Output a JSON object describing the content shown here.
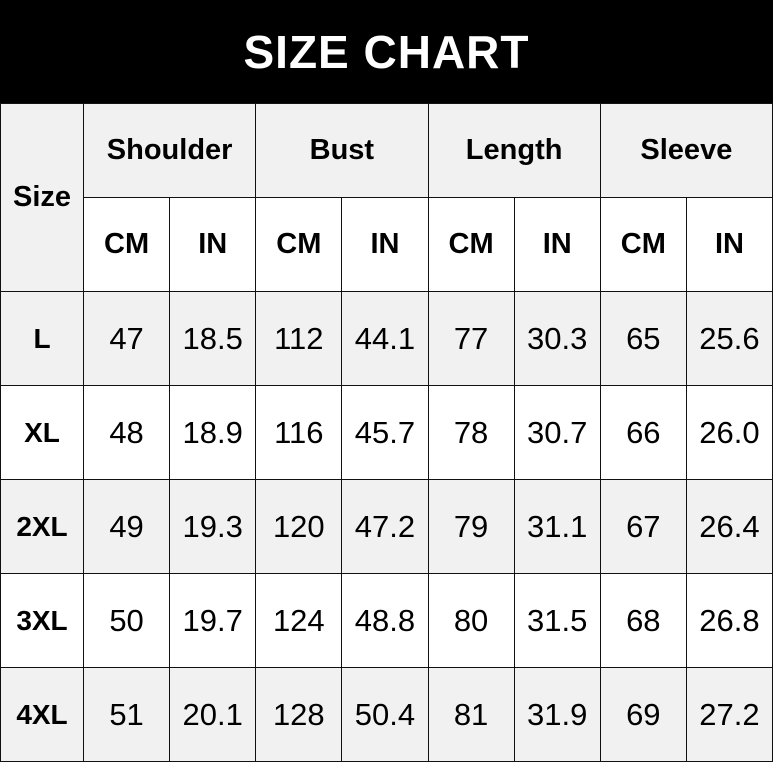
{
  "title": "SIZE CHART",
  "header": {
    "size": "Size",
    "groups": [
      "Shoulder",
      "Bust",
      "Length",
      "Sleeve"
    ],
    "units": [
      "CM",
      "IN",
      "CM",
      "IN",
      "CM",
      "IN",
      "CM",
      "IN"
    ]
  },
  "rows": [
    {
      "size": "L",
      "values": [
        "47",
        "18.5",
        "112",
        "44.1",
        "77",
        "30.3",
        "65",
        "25.6"
      ]
    },
    {
      "size": "XL",
      "values": [
        "48",
        "18.9",
        "116",
        "45.7",
        "78",
        "30.7",
        "66",
        "26.0"
      ]
    },
    {
      "size": "2XL",
      "values": [
        "49",
        "19.3",
        "120",
        "47.2",
        "79",
        "31.1",
        "67",
        "26.4"
      ]
    },
    {
      "size": "3XL",
      "values": [
        "50",
        "19.7",
        "124",
        "48.8",
        "80",
        "31.5",
        "68",
        "26.8"
      ]
    },
    {
      "size": "4XL",
      "values": [
        "51",
        "20.1",
        "128",
        "50.4",
        "81",
        "31.9",
        "69",
        "27.2"
      ]
    }
  ]
}
